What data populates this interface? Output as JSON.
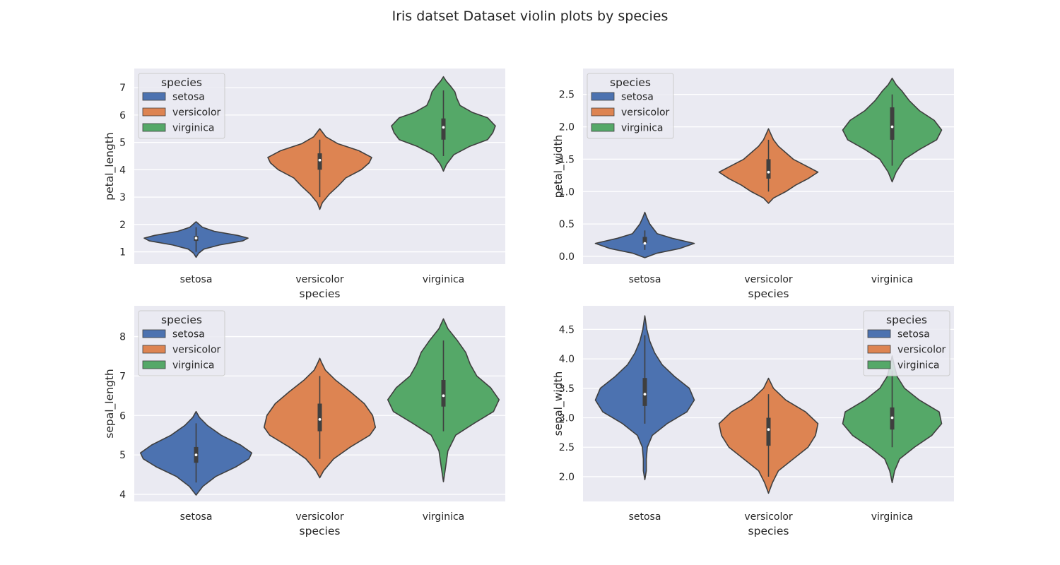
{
  "title": "Iris datset Dataset violin plots by species",
  "chart_data": [
    {
      "type": "violin",
      "xlabel": "species",
      "ylabel": "petal_length",
      "categories": [
        "setosa",
        "versicolor",
        "virginica"
      ],
      "ylim": [
        0.55,
        7.7
      ],
      "yticks": [
        1,
        2,
        3,
        4,
        5,
        6,
        7
      ],
      "grid": true,
      "legend": {
        "title": "species",
        "position": "upper-left",
        "entries": [
          "setosa",
          "versicolor",
          "virginica"
        ]
      },
      "series": [
        {
          "name": "setosa",
          "color": "#4c72b0",
          "min": 1.0,
          "q1": 1.4,
          "median": 1.5,
          "q3": 1.575,
          "max": 1.9,
          "kde_range": [
            0.8,
            2.1
          ],
          "max_halfwidth": 0.42,
          "profile": [
            [
              0.8,
              0.0
            ],
            [
              0.95,
              0.05
            ],
            [
              1.1,
              0.15
            ],
            [
              1.25,
              0.45
            ],
            [
              1.4,
              0.9
            ],
            [
              1.5,
              1.0
            ],
            [
              1.6,
              0.8
            ],
            [
              1.75,
              0.35
            ],
            [
              1.9,
              0.12
            ],
            [
              2.05,
              0.03
            ],
            [
              2.1,
              0.0
            ]
          ]
        },
        {
          "name": "versicolor",
          "color": "#dd8452",
          "min": 3.0,
          "q1": 4.0,
          "median": 4.35,
          "q3": 4.6,
          "max": 5.1,
          "kde_range": [
            2.55,
            5.5
          ],
          "max_halfwidth": 0.42,
          "profile": [
            [
              2.55,
              0.0
            ],
            [
              2.8,
              0.05
            ],
            [
              3.1,
              0.18
            ],
            [
              3.4,
              0.35
            ],
            [
              3.7,
              0.5
            ],
            [
              4.0,
              0.8
            ],
            [
              4.25,
              0.95
            ],
            [
              4.45,
              1.0
            ],
            [
              4.7,
              0.75
            ],
            [
              4.95,
              0.35
            ],
            [
              5.2,
              0.12
            ],
            [
              5.4,
              0.04
            ],
            [
              5.5,
              0.0
            ]
          ]
        },
        {
          "name": "virginica",
          "color": "#55a868",
          "min": 4.5,
          "q1": 5.1,
          "median": 5.55,
          "q3": 5.875,
          "max": 6.9,
          "kde_range": [
            3.95,
            7.4
          ],
          "max_halfwidth": 0.42,
          "profile": [
            [
              3.95,
              0.0
            ],
            [
              4.2,
              0.06
            ],
            [
              4.55,
              0.2
            ],
            [
              4.85,
              0.5
            ],
            [
              5.1,
              0.85
            ],
            [
              5.35,
              0.95
            ],
            [
              5.6,
              1.0
            ],
            [
              5.9,
              0.85
            ],
            [
              6.1,
              0.55
            ],
            [
              6.35,
              0.32
            ],
            [
              6.6,
              0.26
            ],
            [
              6.85,
              0.22
            ],
            [
              7.05,
              0.14
            ],
            [
              7.25,
              0.05
            ],
            [
              7.4,
              0.0
            ]
          ]
        }
      ]
    },
    {
      "type": "violin",
      "xlabel": "species",
      "ylabel": "petal_width",
      "categories": [
        "setosa",
        "versicolor",
        "virginica"
      ],
      "ylim": [
        -0.12,
        2.9
      ],
      "yticks": [
        0.0,
        0.5,
        1.0,
        1.5,
        2.0,
        2.5
      ],
      "yticklabels": [
        "0.0",
        "0.5",
        "1.0",
        "1.5",
        "2.0",
        "2.5"
      ],
      "grid": true,
      "legend": {
        "title": "species",
        "position": "upper-left",
        "entries": [
          "setosa",
          "versicolor",
          "virginica"
        ]
      },
      "series": [
        {
          "name": "setosa",
          "color": "#4c72b0",
          "min": 0.1,
          "q1": 0.2,
          "median": 0.2,
          "q3": 0.3,
          "max": 0.4,
          "kde_range": [
            -0.02,
            0.68
          ],
          "max_halfwidth": 0.4,
          "profile": [
            [
              -0.02,
              0.0
            ],
            [
              0.05,
              0.25
            ],
            [
              0.12,
              0.7
            ],
            [
              0.2,
              1.0
            ],
            [
              0.28,
              0.55
            ],
            [
              0.35,
              0.25
            ],
            [
              0.42,
              0.18
            ],
            [
              0.5,
              0.1
            ],
            [
              0.6,
              0.04
            ],
            [
              0.68,
              0.0
            ]
          ]
        },
        {
          "name": "versicolor",
          "color": "#dd8452",
          "min": 1.0,
          "q1": 1.2,
          "median": 1.3,
          "q3": 1.5,
          "max": 1.8,
          "kde_range": [
            0.82,
            1.97
          ],
          "max_halfwidth": 0.4,
          "profile": [
            [
              0.82,
              0.0
            ],
            [
              0.9,
              0.1
            ],
            [
              1.0,
              0.35
            ],
            [
              1.1,
              0.55
            ],
            [
              1.2,
              0.8
            ],
            [
              1.3,
              1.0
            ],
            [
              1.4,
              0.75
            ],
            [
              1.5,
              0.5
            ],
            [
              1.6,
              0.35
            ],
            [
              1.7,
              0.2
            ],
            [
              1.8,
              0.1
            ],
            [
              1.9,
              0.04
            ],
            [
              1.97,
              0.0
            ]
          ]
        },
        {
          "name": "virginica",
          "color": "#55a868",
          "min": 1.4,
          "q1": 1.8,
          "median": 2.0,
          "q3": 2.3,
          "max": 2.5,
          "kde_range": [
            1.15,
            2.75
          ],
          "max_halfwidth": 0.4,
          "profile": [
            [
              1.15,
              0.0
            ],
            [
              1.3,
              0.08
            ],
            [
              1.5,
              0.25
            ],
            [
              1.65,
              0.55
            ],
            [
              1.8,
              0.9
            ],
            [
              1.95,
              1.0
            ],
            [
              2.1,
              0.85
            ],
            [
              2.25,
              0.55
            ],
            [
              2.4,
              0.35
            ],
            [
              2.55,
              0.2
            ],
            [
              2.65,
              0.08
            ],
            [
              2.75,
              0.0
            ]
          ]
        }
      ]
    },
    {
      "type": "violin",
      "xlabel": "species",
      "ylabel": "sepal_length",
      "categories": [
        "setosa",
        "versicolor",
        "virginica"
      ],
      "ylim": [
        3.82,
        8.78
      ],
      "yticks": [
        4,
        5,
        6,
        7,
        8
      ],
      "grid": true,
      "legend": {
        "title": "species",
        "position": "upper-left",
        "entries": [
          "setosa",
          "versicolor",
          "virginica"
        ]
      },
      "series": [
        {
          "name": "setosa",
          "color": "#4c72b0",
          "min": 4.3,
          "q1": 4.8,
          "median": 5.0,
          "q3": 5.2,
          "max": 5.8,
          "kde_range": [
            3.98,
            6.1
          ],
          "max_halfwidth": 0.45,
          "profile": [
            [
              3.98,
              0.0
            ],
            [
              4.2,
              0.12
            ],
            [
              4.45,
              0.35
            ],
            [
              4.7,
              0.72
            ],
            [
              4.9,
              0.95
            ],
            [
              5.05,
              1.0
            ],
            [
              5.25,
              0.8
            ],
            [
              5.5,
              0.45
            ],
            [
              5.75,
              0.2
            ],
            [
              5.95,
              0.06
            ],
            [
              6.1,
              0.0
            ]
          ]
        },
        {
          "name": "versicolor",
          "color": "#dd8452",
          "min": 4.9,
          "q1": 5.6,
          "median": 5.9,
          "q3": 6.3,
          "max": 7.0,
          "kde_range": [
            4.42,
            7.45
          ],
          "max_halfwidth": 0.45,
          "profile": [
            [
              4.42,
              0.0
            ],
            [
              4.6,
              0.07
            ],
            [
              4.9,
              0.25
            ],
            [
              5.2,
              0.55
            ],
            [
              5.5,
              0.9
            ],
            [
              5.7,
              1.0
            ],
            [
              6.0,
              0.95
            ],
            [
              6.3,
              0.8
            ],
            [
              6.6,
              0.55
            ],
            [
              6.9,
              0.28
            ],
            [
              7.15,
              0.1
            ],
            [
              7.35,
              0.03
            ],
            [
              7.45,
              0.0
            ]
          ]
        },
        {
          "name": "virginica",
          "color": "#55a868",
          "min": 5.6,
          "q1": 6.225,
          "median": 6.5,
          "q3": 6.9,
          "max": 7.9,
          "kde_range": [
            4.32,
            8.45
          ],
          "max_halfwidth": 0.45,
          "profile": [
            [
              4.32,
              0.0
            ],
            [
              4.7,
              0.04
            ],
            [
              5.1,
              0.08
            ],
            [
              5.5,
              0.22
            ],
            [
              5.8,
              0.55
            ],
            [
              6.1,
              0.9
            ],
            [
              6.4,
              1.0
            ],
            [
              6.7,
              0.85
            ],
            [
              7.0,
              0.6
            ],
            [
              7.3,
              0.48
            ],
            [
              7.6,
              0.4
            ],
            [
              7.9,
              0.25
            ],
            [
              8.2,
              0.08
            ],
            [
              8.45,
              0.0
            ]
          ]
        }
      ]
    },
    {
      "type": "violin",
      "xlabel": "species",
      "ylabel": "sepal_width",
      "categories": [
        "setosa",
        "versicolor",
        "virginica"
      ],
      "ylim": [
        1.58,
        4.9
      ],
      "yticks": [
        2.0,
        2.5,
        3.0,
        3.5,
        4.0,
        4.5
      ],
      "yticklabels": [
        "2.0",
        "2.5",
        "3.0",
        "3.5",
        "4.0",
        "4.5"
      ],
      "grid": true,
      "legend": {
        "title": "species",
        "position": "upper-right",
        "entries": [
          "setosa",
          "versicolor",
          "virginica"
        ]
      },
      "series": [
        {
          "name": "setosa",
          "color": "#4c72b0",
          "min": 2.9,
          "q1": 3.2,
          "median": 3.4,
          "q3": 3.675,
          "max": 4.4,
          "kde_range": [
            1.95,
            4.73
          ],
          "max_halfwidth": 0.4,
          "profile": [
            [
              1.95,
              0.0
            ],
            [
              2.1,
              0.03
            ],
            [
              2.3,
              0.03
            ],
            [
              2.5,
              0.05
            ],
            [
              2.7,
              0.15
            ],
            [
              2.9,
              0.45
            ],
            [
              3.1,
              0.85
            ],
            [
              3.3,
              1.0
            ],
            [
              3.5,
              0.9
            ],
            [
              3.7,
              0.6
            ],
            [
              3.9,
              0.35
            ],
            [
              4.1,
              0.2
            ],
            [
              4.3,
              0.1
            ],
            [
              4.5,
              0.04
            ],
            [
              4.73,
              0.0
            ]
          ]
        },
        {
          "name": "versicolor",
          "color": "#dd8452",
          "min": 2.0,
          "q1": 2.525,
          "median": 2.8,
          "q3": 3.0,
          "max": 3.4,
          "kde_range": [
            1.72,
            3.67
          ],
          "max_halfwidth": 0.4,
          "profile": [
            [
              1.72,
              0.0
            ],
            [
              1.9,
              0.08
            ],
            [
              2.1,
              0.2
            ],
            [
              2.3,
              0.5
            ],
            [
              2.5,
              0.8
            ],
            [
              2.7,
              0.95
            ],
            [
              2.9,
              1.0
            ],
            [
              3.1,
              0.75
            ],
            [
              3.3,
              0.35
            ],
            [
              3.5,
              0.1
            ],
            [
              3.67,
              0.0
            ]
          ]
        },
        {
          "name": "virginica",
          "color": "#55a868",
          "min": 2.5,
          "q1": 2.8,
          "median": 3.0,
          "q3": 3.175,
          "max": 3.8,
          "kde_range": [
            1.9,
            4.05
          ],
          "max_halfwidth": 0.4,
          "profile": [
            [
              1.9,
              0.0
            ],
            [
              2.1,
              0.05
            ],
            [
              2.3,
              0.15
            ],
            [
              2.5,
              0.45
            ],
            [
              2.7,
              0.8
            ],
            [
              2.9,
              1.0
            ],
            [
              3.1,
              0.95
            ],
            [
              3.3,
              0.55
            ],
            [
              3.5,
              0.25
            ],
            [
              3.7,
              0.1
            ],
            [
              3.9,
              0.04
            ],
            [
              4.05,
              0.0
            ]
          ]
        }
      ]
    }
  ]
}
